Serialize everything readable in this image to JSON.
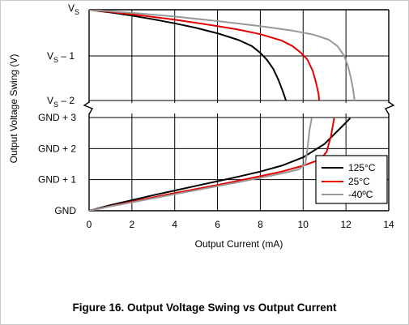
{
  "figure_caption": "Figure 16. Output Voltage Swing vs Output Current",
  "chart_data": {
    "type": "line",
    "title": "",
    "xlabel": "Output Current (mA)",
    "ylabel": "Output Voltage Swing (V)",
    "xlim": [
      0,
      14
    ],
    "x_ticks": [
      "0",
      "2",
      "4",
      "6",
      "8",
      "10",
      "12",
      "14"
    ],
    "y_ticks_top": [
      {
        "base": "V",
        "sub": "S",
        "suffix": ""
      },
      {
        "base": "V",
        "sub": "S",
        "suffix": " – 1"
      },
      {
        "base": "V",
        "sub": "S",
        "suffix": " – 2"
      }
    ],
    "y_ticks_bottom": [
      "GND + 3",
      "GND + 2",
      "GND + 1",
      "GND"
    ],
    "axis_break": true,
    "grid": true,
    "legend_position": "bottom-right",
    "series": [
      {
        "name": "125°C",
        "color": "#000000",
        "high_side_swing_from_vs": [
          [
            0,
            0
          ],
          [
            1,
            0.06
          ],
          [
            2,
            0.13
          ],
          [
            3,
            0.21
          ],
          [
            4,
            0.3
          ],
          [
            5,
            0.4
          ],
          [
            6,
            0.52
          ],
          [
            7,
            0.67
          ],
          [
            7.6,
            0.8
          ],
          [
            8.0,
            0.95
          ],
          [
            8.3,
            1.1
          ],
          [
            8.6,
            1.3
          ],
          [
            8.85,
            1.55
          ],
          [
            9.05,
            1.8
          ],
          [
            9.2,
            2.0
          ]
        ],
        "low_side_swing_from_gnd": [
          [
            0,
            0
          ],
          [
            1,
            0.18
          ],
          [
            2,
            0.34
          ],
          [
            3,
            0.5
          ],
          [
            4,
            0.65
          ],
          [
            5,
            0.8
          ],
          [
            6,
            0.95
          ],
          [
            7,
            1.1
          ],
          [
            8,
            1.26
          ],
          [
            9,
            1.45
          ],
          [
            10,
            1.72
          ],
          [
            11,
            2.15
          ],
          [
            11.8,
            2.7
          ],
          [
            12.2,
            2.98
          ]
        ]
      },
      {
        "name": "25°C",
        "color": "#e60000",
        "high_side_swing_from_vs": [
          [
            0,
            0
          ],
          [
            2,
            0.1
          ],
          [
            4,
            0.22
          ],
          [
            6,
            0.36
          ],
          [
            7,
            0.44
          ],
          [
            8,
            0.54
          ],
          [
            9,
            0.68
          ],
          [
            9.5,
            0.8
          ],
          [
            9.9,
            0.95
          ],
          [
            10.2,
            1.1
          ],
          [
            10.45,
            1.35
          ],
          [
            10.6,
            1.6
          ],
          [
            10.72,
            1.85
          ],
          [
            10.75,
            2.0
          ]
        ],
        "low_side_swing_from_gnd": [
          [
            0,
            0
          ],
          [
            1,
            0.15
          ],
          [
            2,
            0.29
          ],
          [
            3,
            0.43
          ],
          [
            4,
            0.57
          ],
          [
            5,
            0.7
          ],
          [
            6,
            0.83
          ],
          [
            7,
            0.97
          ],
          [
            8,
            1.11
          ],
          [
            9,
            1.26
          ],
          [
            10,
            1.45
          ],
          [
            10.8,
            1.65
          ],
          [
            11.1,
            1.9
          ],
          [
            11.3,
            2.4
          ],
          [
            11.45,
            2.98
          ]
        ]
      },
      {
        "name": "-40ºC",
        "color": "#999999",
        "high_side_swing_from_vs": [
          [
            0,
            0
          ],
          [
            2,
            0.07
          ],
          [
            4,
            0.15
          ],
          [
            6,
            0.25
          ],
          [
            8,
            0.36
          ],
          [
            9.5,
            0.46
          ],
          [
            10.5,
            0.55
          ],
          [
            11.2,
            0.66
          ],
          [
            11.6,
            0.8
          ],
          [
            11.9,
            1.0
          ],
          [
            12.1,
            1.25
          ],
          [
            12.25,
            1.55
          ],
          [
            12.35,
            1.8
          ],
          [
            12.4,
            2.0
          ]
        ],
        "low_side_swing_from_gnd": [
          [
            0,
            0
          ],
          [
            1,
            0.14
          ],
          [
            2,
            0.27
          ],
          [
            3,
            0.4
          ],
          [
            4,
            0.53
          ],
          [
            5,
            0.66
          ],
          [
            6,
            0.79
          ],
          [
            7,
            0.92
          ],
          [
            8,
            1.06
          ],
          [
            9,
            1.2
          ],
          [
            9.8,
            1.33
          ],
          [
            10.1,
            1.5
          ],
          [
            10.2,
            2.0
          ],
          [
            10.3,
            2.6
          ],
          [
            10.4,
            2.98
          ]
        ]
      }
    ]
  }
}
